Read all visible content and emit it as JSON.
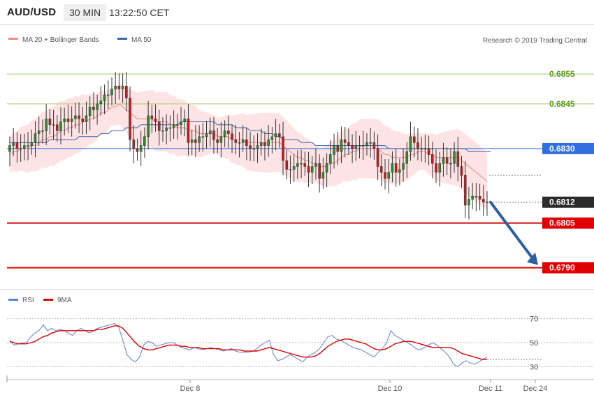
{
  "header": {
    "symbol": "AUD/USD",
    "timeframe": "30 MIN",
    "time": "13:22:50 CET"
  },
  "legend": {
    "items": [
      {
        "label": "MA 20 + Bollinger Bands",
        "color": "#f08a8a"
      },
      {
        "label": "MA 50",
        "color": "#3a65a8"
      }
    ],
    "copyright": "Research © 2019 Trading Central"
  },
  "chart_data": [
    {
      "type": "candlestick",
      "title": "",
      "price_levels": [
        {
          "value": 0.6855,
          "label": "0.6855",
          "kind": "resistance",
          "color": "#5a9a1a",
          "line_color": "#a8cc70"
        },
        {
          "value": 0.6845,
          "label": "0.6845",
          "kind": "resistance",
          "color": "#5a9a1a",
          "line_color": "#a8cc70"
        },
        {
          "value": 0.683,
          "label": "0.6830",
          "kind": "pivot",
          "color": "#2f6fe0",
          "line_color": "#2f6fe0"
        },
        {
          "value": 0.6812,
          "label": "0.6812",
          "kind": "last",
          "color": "#2b2b2b"
        },
        {
          "value": 0.6805,
          "label": "0.6805",
          "kind": "support",
          "color": "#e00000",
          "line_color": "#e00000"
        },
        {
          "value": 0.679,
          "label": "0.6790",
          "kind": "support",
          "color": "#e00000",
          "line_color": "#e00000"
        }
      ],
      "y_range": [
        0.6785,
        0.6863
      ],
      "x_labels": [
        "Dec 8",
        "Dec 10",
        "Dec 11",
        "Dec 24"
      ],
      "close_series": [
        0.6831,
        0.6832,
        0.683,
        0.683,
        0.6831,
        0.6831,
        0.6832,
        0.6835,
        0.6836,
        0.6836,
        0.684,
        0.6838,
        0.6838,
        0.6836,
        0.6839,
        0.684,
        0.6839,
        0.684,
        0.6841,
        0.684,
        0.6839,
        0.6841,
        0.6844,
        0.6843,
        0.6845,
        0.6846,
        0.6848,
        0.6848,
        0.685,
        0.6851,
        0.685,
        0.6851,
        0.6847,
        0.6833,
        0.683,
        0.6829,
        0.6831,
        0.6834,
        0.6841,
        0.684,
        0.6839,
        0.6836,
        0.6836,
        0.6837,
        0.6837,
        0.6838,
        0.6838,
        0.6839,
        0.684,
        0.6832,
        0.6833,
        0.6832,
        0.6834,
        0.6834,
        0.6835,
        0.6836,
        0.6833,
        0.6832,
        0.6834,
        0.6836,
        0.6835,
        0.6833,
        0.6832,
        0.6832,
        0.6833,
        0.6831,
        0.683,
        0.683,
        0.6831,
        0.6832,
        0.6831,
        0.6833,
        0.6834,
        0.6835,
        0.6834,
        0.6826,
        0.6823,
        0.6823,
        0.6824,
        0.6825,
        0.6825,
        0.6824,
        0.6822,
        0.6824,
        0.6825,
        0.682,
        0.6822,
        0.6825,
        0.6828,
        0.6831,
        0.6829,
        0.6833,
        0.6832,
        0.6831,
        0.683,
        0.6831,
        0.6831,
        0.6831,
        0.6832,
        0.6832,
        0.683,
        0.6824,
        0.6822,
        0.682,
        0.6822,
        0.6825,
        0.6822,
        0.6823,
        0.6825,
        0.6829,
        0.6834,
        0.6832,
        0.683,
        0.683,
        0.683,
        0.6828,
        0.6825,
        0.6822,
        0.6825,
        0.6827,
        0.6825,
        0.6825,
        0.6829,
        0.6824,
        0.6821,
        0.6811,
        0.6813,
        0.6814,
        0.6814,
        0.6813,
        0.6812,
        0.6812
      ],
      "ma20_series": [
        0.6828,
        0.6829,
        0.6829,
        0.683,
        0.683,
        0.683,
        0.6831,
        0.6831,
        0.6832,
        0.6833,
        0.6833,
        0.6834,
        0.6834,
        0.6835,
        0.6836,
        0.6836,
        0.6837,
        0.6837,
        0.6838,
        0.6838,
        0.6839,
        0.6839,
        0.684,
        0.684,
        0.6841,
        0.6842,
        0.6842,
        0.6843,
        0.6844,
        0.6844,
        0.6845,
        0.6844,
        0.6843,
        0.6842,
        0.6841,
        0.684,
        0.684,
        0.684,
        0.684,
        0.684,
        0.6839,
        0.6839,
        0.6839,
        0.6839,
        0.6838,
        0.6838,
        0.6837,
        0.6837,
        0.6837,
        0.6836,
        0.6836,
        0.6836,
        0.6835,
        0.6835,
        0.6835,
        0.6835,
        0.6835,
        0.6834,
        0.6834,
        0.6834,
        0.6834,
        0.6833,
        0.6833,
        0.6833,
        0.6833,
        0.6832,
        0.6832,
        0.6832,
        0.6832,
        0.6832,
        0.6832,
        0.6832,
        0.6832,
        0.6832,
        0.6832,
        0.6831,
        0.683,
        0.6829,
        0.6828,
        0.6827,
        0.6827,
        0.6826,
        0.6826,
        0.6825,
        0.6825,
        0.6824,
        0.6824,
        0.6824,
        0.6825,
        0.6825,
        0.6826,
        0.6827,
        0.6828,
        0.6828,
        0.6829,
        0.6829,
        0.683,
        0.683,
        0.683,
        0.683,
        0.683,
        0.683,
        0.6829,
        0.6828,
        0.6828,
        0.6827,
        0.6827,
        0.6827,
        0.6827,
        0.6827,
        0.6828,
        0.6828,
        0.6829,
        0.6829,
        0.6829,
        0.6828,
        0.6828,
        0.6827,
        0.6827,
        0.6827,
        0.6827,
        0.6827,
        0.6827,
        0.6827,
        0.6826,
        0.6825,
        0.6824,
        0.6823,
        0.6822,
        0.6821,
        0.682,
        0.6819
      ],
      "ma50_series": [
        0.6832,
        0.6832,
        0.6832,
        0.6832,
        0.6832,
        0.6832,
        0.6832,
        0.6832,
        0.6832,
        0.6832,
        0.6832,
        0.6833,
        0.6833,
        0.6833,
        0.6833,
        0.6833,
        0.6833,
        0.6833,
        0.6833,
        0.6834,
        0.6834,
        0.6834,
        0.6834,
        0.6834,
        0.6834,
        0.6835,
        0.6835,
        0.6835,
        0.6836,
        0.6836,
        0.6836,
        0.6836,
        0.6837,
        0.6837,
        0.6837,
        0.6837,
        0.6838,
        0.6838,
        0.6838,
        0.6838,
        0.6838,
        0.6838,
        0.6838,
        0.6838,
        0.6838,
        0.6838,
        0.6838,
        0.6839,
        0.6839,
        0.6839,
        0.6839,
        0.6839,
        0.6839,
        0.6839,
        0.6839,
        0.6839,
        0.6839,
        0.6838,
        0.6838,
        0.6838,
        0.6838,
        0.6838,
        0.6837,
        0.6837,
        0.6837,
        0.6837,
        0.6836,
        0.6836,
        0.6836,
        0.6836,
        0.6835,
        0.6835,
        0.6835,
        0.6834,
        0.6834,
        0.6833,
        0.6833,
        0.6833,
        0.6833,
        0.6833,
        0.6832,
        0.6832,
        0.6832,
        0.6832,
        0.6831,
        0.6831,
        0.6831,
        0.6831,
        0.6831,
        0.6831,
        0.6831,
        0.6831,
        0.6831,
        0.6831,
        0.6831,
        0.6831,
        0.6831,
        0.6831,
        0.6831,
        0.6831,
        0.6831,
        0.6831,
        0.6831,
        0.6831,
        0.683,
        0.683,
        0.683,
        0.683,
        0.683,
        0.683,
        0.683,
        0.683,
        0.683,
        0.683,
        0.683,
        0.683,
        0.683,
        0.683,
        0.683,
        0.683,
        0.683,
        0.683,
        0.683,
        0.683,
        0.683,
        0.683,
        0.6829,
        0.6829,
        0.6829,
        0.6829,
        0.6829,
        0.6829,
        0.6829
      ],
      "forecast_arrow": {
        "from": 0.6812,
        "to": 0.679
      }
    },
    {
      "type": "line",
      "title": "",
      "legend": [
        "RSI",
        "9MA"
      ],
      "y_ticks": [
        70,
        50,
        30
      ],
      "ylim": [
        25,
        75
      ],
      "series": [
        {
          "name": "RSI",
          "color": "#5b7fd6",
          "values": [
            52,
            48,
            49,
            50,
            50,
            55,
            58,
            60,
            65,
            60,
            62,
            60,
            61,
            60,
            58,
            56,
            60,
            62,
            60,
            58,
            60,
            62,
            63,
            64,
            65,
            66,
            63,
            52,
            40,
            36,
            34,
            38,
            48,
            51,
            50,
            47,
            48,
            49,
            50,
            50,
            48,
            46,
            45,
            44,
            46,
            45,
            44,
            45,
            46,
            45,
            44,
            43,
            44,
            45,
            43,
            42,
            42,
            42,
            43,
            45,
            48,
            50,
            52,
            40,
            35,
            36,
            38,
            40,
            38,
            36,
            34,
            38,
            40,
            42,
            45,
            50,
            55,
            56,
            53,
            52,
            50,
            48,
            46,
            45,
            44,
            42,
            40,
            38,
            42,
            45,
            50,
            60,
            56,
            54,
            52,
            50,
            48,
            45,
            44,
            46,
            48,
            50,
            48,
            45,
            42,
            38,
            32,
            30,
            33,
            35,
            33,
            32,
            34,
            36,
            38
          ]
        },
        {
          "name": "9MA",
          "color": "#e00000",
          "values": [
            51,
            50,
            49,
            49,
            49,
            50,
            51,
            53,
            55,
            56,
            58,
            59,
            60,
            60,
            60,
            60,
            60,
            60,
            60,
            60,
            60,
            61,
            61,
            62,
            63,
            64,
            64,
            62,
            58,
            54,
            50,
            47,
            45,
            44,
            44,
            45,
            46,
            47,
            48,
            48,
            48,
            47,
            47,
            46,
            46,
            46,
            45,
            45,
            45,
            45,
            45,
            44,
            44,
            44,
            44,
            44,
            43,
            43,
            43,
            43,
            44,
            45,
            46,
            45,
            44,
            43,
            42,
            41,
            40,
            39,
            38,
            38,
            38,
            39,
            41,
            44,
            47,
            49,
            51,
            52,
            53,
            53,
            52,
            51,
            50,
            49,
            47,
            45,
            44,
            44,
            45,
            47,
            49,
            50,
            51,
            51,
            51,
            50,
            49,
            48,
            47,
            46,
            46,
            46,
            46,
            46,
            45,
            43,
            41,
            40,
            39,
            38,
            37,
            36,
            36
          ]
        }
      ]
    }
  ]
}
